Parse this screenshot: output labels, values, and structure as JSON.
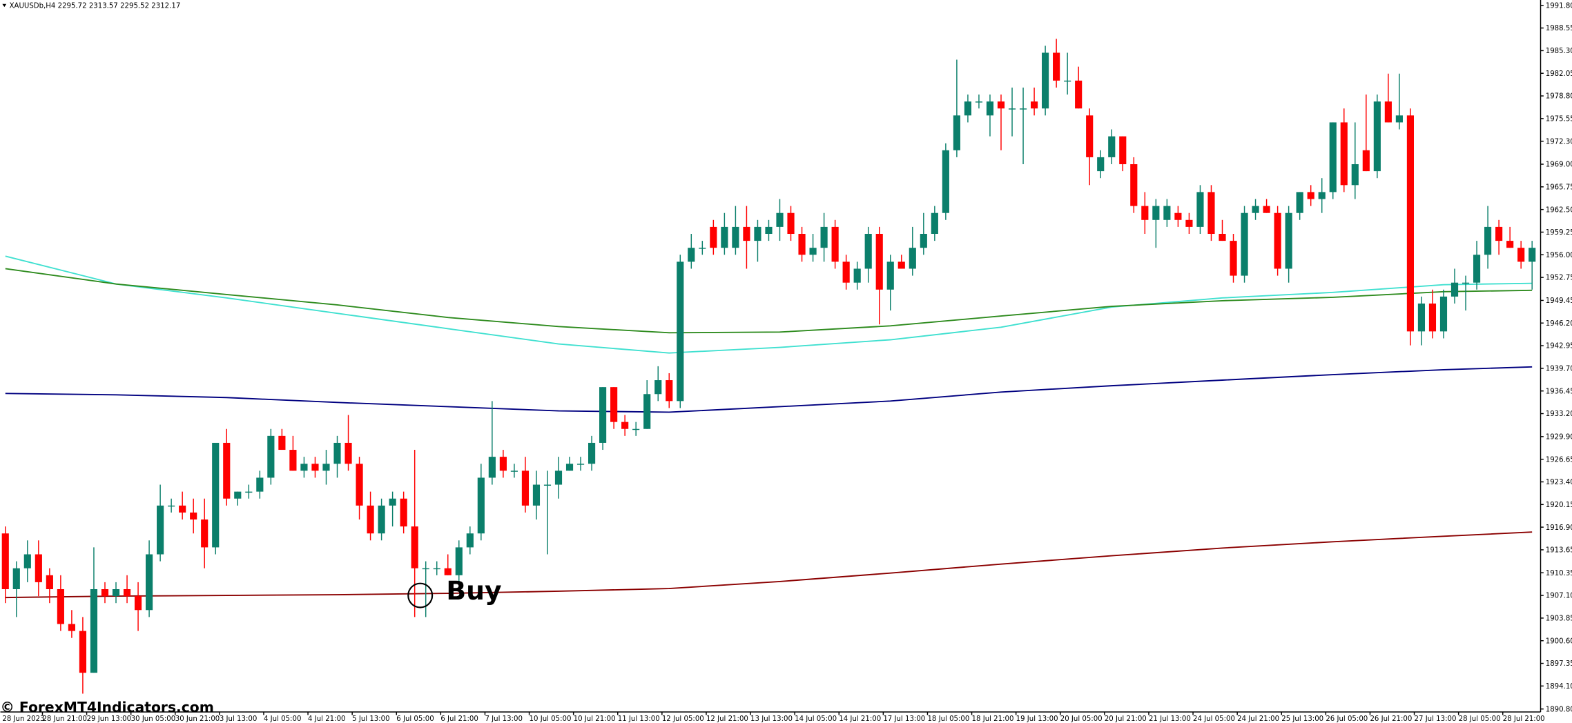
{
  "chart_data": {
    "type": "candlestick",
    "title": "XAUUSDb,H4  2295.72 2313.57 2295.52 2312.17",
    "watermark": "© ForexMT4Indicators.com",
    "annotation": {
      "text": "Buy",
      "x": 37.5,
      "y": 1907.1
    },
    "up_color": "#0b7f6b",
    "down_color": "#ff0000",
    "candles": [
      [
        1916,
        1917,
        1906,
        1908
      ],
      [
        1908,
        1912,
        1904,
        1911
      ],
      [
        1911,
        1915,
        1909,
        1913
      ],
      [
        1913,
        1915,
        1907,
        1909
      ],
      [
        1910,
        1911,
        1906,
        1908
      ],
      [
        1908,
        1910,
        1902,
        1903
      ],
      [
        1903,
        1905,
        1901,
        1902
      ],
      [
        1902,
        1904,
        1893,
        1896
      ],
      [
        1896,
        1914,
        1896,
        1908
      ],
      [
        1908,
        1909,
        1906,
        1907
      ],
      [
        1907,
        1909,
        1906,
        1908
      ],
      [
        1908,
        1910,
        1906,
        1907
      ],
      [
        1907,
        1909,
        1902,
        1905
      ],
      [
        1905,
        1915,
        1904,
        1913
      ],
      [
        1913,
        1923,
        1912,
        1920
      ],
      [
        1920,
        1921,
        1919,
        1920
      ],
      [
        1920,
        1922,
        1918,
        1919
      ],
      [
        1919,
        1921,
        1916,
        1918
      ],
      [
        1918,
        1921,
        1911,
        1914
      ],
      [
        1914,
        1929,
        1913,
        1929
      ],
      [
        1929,
        1931,
        1920,
        1921
      ],
      [
        1921,
        1922,
        1920,
        1922
      ],
      [
        1922,
        1923,
        1921,
        1922
      ],
      [
        1922,
        1925,
        1921,
        1924
      ],
      [
        1924,
        1931,
        1923,
        1930
      ],
      [
        1930,
        1931,
        1928,
        1928
      ],
      [
        1928,
        1930,
        1925,
        1925
      ],
      [
        1925,
        1927,
        1924,
        1926
      ],
      [
        1926,
        1927,
        1924,
        1925
      ],
      [
        1925,
        1928,
        1923,
        1926
      ],
      [
        1926,
        1930,
        1924,
        1929
      ],
      [
        1929,
        1933,
        1925,
        1926
      ],
      [
        1926,
        1927,
        1918,
        1920
      ],
      [
        1920,
        1922,
        1915,
        1916
      ],
      [
        1916,
        1921,
        1915,
        1920
      ],
      [
        1920,
        1922,
        1917,
        1921
      ],
      [
        1921,
        1922,
        1916,
        1917
      ],
      [
        1917,
        1928,
        1904,
        1911
      ],
      [
        1911,
        1912,
        1904,
        1911
      ],
      [
        1911,
        1912,
        1910,
        1911
      ],
      [
        1911,
        1913,
        1910,
        1910
      ],
      [
        1910,
        1915,
        1909,
        1914
      ],
      [
        1914,
        1917,
        1913,
        1916
      ],
      [
        1916,
        1926,
        1915,
        1924
      ],
      [
        1924,
        1935,
        1923,
        1927
      ],
      [
        1927,
        1928,
        1924,
        1925
      ],
      [
        1925,
        1926,
        1924,
        1925
      ],
      [
        1925,
        1927,
        1919,
        1920
      ],
      [
        1920,
        1925,
        1918,
        1923
      ],
      [
        1923,
        1925,
        1913,
        1923
      ],
      [
        1923,
        1927,
        1921,
        1925
      ],
      [
        1925,
        1927,
        1925,
        1926
      ],
      [
        1926,
        1927,
        1925,
        1926
      ],
      [
        1926,
        1930,
        1925,
        1929
      ],
      [
        1929,
        1937,
        1928,
        1937
      ],
      [
        1937,
        1937,
        1931,
        1932
      ],
      [
        1932,
        1933,
        1930,
        1931
      ],
      [
        1931,
        1932,
        1930,
        1931
      ],
      [
        1931,
        1938,
        1931,
        1936
      ],
      [
        1936,
        1940,
        1935,
        1938
      ],
      [
        1938,
        1939,
        1934,
        1935
      ],
      [
        1935,
        1956,
        1934,
        1955
      ],
      [
        1955,
        1959,
        1954,
        1957
      ],
      [
        1957,
        1958,
        1956,
        1957
      ],
      [
        1960,
        1961,
        1956,
        1957
      ],
      [
        1957,
        1962,
        1956,
        1960
      ],
      [
        1957,
        1963,
        1956,
        1960
      ],
      [
        1960,
        1963,
        1954,
        1958
      ],
      [
        1958,
        1961,
        1955,
        1960
      ],
      [
        1959,
        1961,
        1958,
        1960
      ],
      [
        1960,
        1964,
        1958,
        1962
      ],
      [
        1962,
        1963,
        1958,
        1959
      ],
      [
        1959,
        1960,
        1955,
        1956
      ],
      [
        1956,
        1959,
        1955,
        1957
      ],
      [
        1957,
        1962,
        1955,
        1960
      ],
      [
        1960,
        1961,
        1954,
        1955
      ],
      [
        1955,
        1956,
        1951,
        1952
      ],
      [
        1952,
        1955,
        1951,
        1954
      ],
      [
        1954,
        1960,
        1952,
        1959
      ],
      [
        1959,
        1960,
        1946,
        1951
      ],
      [
        1951,
        1956,
        1948,
        1955
      ],
      [
        1955,
        1956,
        1954,
        1954
      ],
      [
        1954,
        1960,
        1953,
        1957
      ],
      [
        1957,
        1962,
        1956,
        1959
      ],
      [
        1959,
        1963,
        1958,
        1962
      ],
      [
        1962,
        1972,
        1961,
        1971
      ],
      [
        1971,
        1984,
        1970,
        1976
      ],
      [
        1976,
        1979,
        1975,
        1978
      ],
      [
        1978,
        1979,
        1977,
        1978
      ],
      [
        1976,
        1979,
        1973,
        1978
      ],
      [
        1978,
        1979,
        1971,
        1977
      ],
      [
        1977,
        1980,
        1973,
        1977
      ],
      [
        1977,
        1980,
        1969,
        1977
      ],
      [
        1978,
        1980,
        1976,
        1977
      ],
      [
        1977,
        1986,
        1976,
        1985
      ],
      [
        1985,
        1987,
        1980,
        1981
      ],
      [
        1981,
        1985,
        1979,
        1981
      ],
      [
        1981,
        1983,
        1977,
        1977
      ],
      [
        1976,
        1977,
        1966,
        1970
      ],
      [
        1968,
        1971,
        1967,
        1970
      ],
      [
        1970,
        1974,
        1969,
        1973
      ],
      [
        1973,
        1973,
        1968,
        1969
      ],
      [
        1969,
        1970,
        1962,
        1963
      ],
      [
        1963,
        1965,
        1959,
        1961
      ],
      [
        1961,
        1964,
        1957,
        1963
      ],
      [
        1961,
        1964,
        1960,
        1963
      ],
      [
        1962,
        1963,
        1960,
        1961
      ],
      [
        1961,
        1962,
        1959,
        1960
      ],
      [
        1960,
        1966,
        1959,
        1965
      ],
      [
        1965,
        1966,
        1958,
        1959
      ],
      [
        1959,
        1961,
        1958,
        1958
      ],
      [
        1958,
        1959,
        1952,
        1953
      ],
      [
        1953,
        1963,
        1952,
        1962
      ],
      [
        1962,
        1964,
        1961,
        1963
      ],
      [
        1963,
        1964,
        1962,
        1962
      ],
      [
        1962,
        1963,
        1953,
        1954
      ],
      [
        1954,
        1963,
        1952,
        1962
      ],
      [
        1962,
        1965,
        1961,
        1965
      ],
      [
        1965,
        1966,
        1963,
        1964
      ],
      [
        1964,
        1967,
        1962,
        1965
      ],
      [
        1965,
        1975,
        1964,
        1975
      ],
      [
        1975,
        1977,
        1965,
        1966
      ],
      [
        1966,
        1975,
        1964,
        1969
      ],
      [
        1971,
        1979,
        1968,
        1968
      ],
      [
        1968,
        1979,
        1967,
        1978
      ],
      [
        1978,
        1982,
        1975,
        1975
      ],
      [
        1975,
        1982,
        1974,
        1976
      ],
      [
        1976,
        1977,
        1943,
        1945
      ],
      [
        1945,
        1950,
        1943,
        1949
      ],
      [
        1949,
        1951,
        1944,
        1945
      ],
      [
        1945,
        1951,
        1944,
        1950
      ],
      [
        1950,
        1954,
        1949,
        1952
      ],
      [
        1952,
        1953,
        1948,
        1952
      ],
      [
        1952,
        1958,
        1951,
        1956
      ],
      [
        1956,
        1963,
        1954,
        1960
      ],
      [
        1960,
        1961,
        1956,
        1958
      ],
      [
        1958,
        1960,
        1957,
        1957
      ],
      [
        1957,
        1958,
        1954,
        1955
      ],
      [
        1955,
        1958,
        1951,
        1957
      ]
    ],
    "lines": [
      {
        "color": "#40e0d0",
        "x": [
          0,
          10,
          20,
          30,
          40,
          50,
          60,
          70,
          80,
          90,
          100,
          110,
          120,
          130,
          138
        ],
        "values": [
          1955.8,
          1951.8,
          1949.8,
          1947.6,
          1945.4,
          1943.2,
          1941.9,
          1942.7,
          1943.8,
          1945.6,
          1948.5,
          1949.8,
          1950.6,
          1951.7,
          1951.9
        ]
      },
      {
        "color": "#2e8b1e",
        "x": [
          0,
          10,
          20,
          30,
          40,
          50,
          60,
          70,
          80,
          90,
          100,
          110,
          120,
          130,
          138
        ],
        "values": [
          1954.0,
          1951.8,
          1950.3,
          1948.8,
          1947.0,
          1945.7,
          1944.8,
          1944.9,
          1945.8,
          1947.2,
          1948.6,
          1949.4,
          1949.9,
          1950.7,
          1950.9
        ]
      },
      {
        "color": "#000080",
        "x": [
          0,
          10,
          20,
          30,
          40,
          50,
          60,
          70,
          80,
          90,
          100,
          110,
          120,
          130,
          138
        ],
        "values": [
          1936.1,
          1935.9,
          1935.5,
          1934.8,
          1934.2,
          1933.6,
          1933.4,
          1934.2,
          1935.0,
          1936.3,
          1937.2,
          1938.0,
          1938.8,
          1939.5,
          1939.9
        ]
      },
      {
        "color": "#8b0000",
        "x": [
          0,
          10,
          20,
          30,
          40,
          50,
          60,
          70,
          80,
          90,
          100,
          110,
          120,
          130,
          138
        ],
        "values": [
          1906.8,
          1907.0,
          1907.1,
          1907.2,
          1907.4,
          1907.7,
          1908.1,
          1909.1,
          1910.3,
          1911.6,
          1912.8,
          1913.9,
          1914.8,
          1915.6,
          1916.2
        ]
      }
    ],
    "x_labels": [
      "28 Jun 2023",
      "28 Jun 21:00",
      "29 Jun 13:00",
      "30 Jun 05:00",
      "30 Jun 21:00",
      "3 Jul 13:00",
      "4 Jul 05:00",
      "4 Jul 21:00",
      "5 Jul 13:00",
      "6 Jul 05:00",
      "6 Jul 21:00",
      "7 Jul 13:00",
      "10 Jul 05:00",
      "10 Jul 21:00",
      "11 Jul 13:00",
      "12 Jul 05:00",
      "12 Jul 21:00",
      "13 Jul 13:00",
      "14 Jul 05:00",
      "14 Jul 21:00",
      "17 Jul 13:00",
      "18 Jul 05:00",
      "18 Jul 21:00",
      "19 Jul 13:00",
      "20 Jul 05:00",
      "20 Jul 21:00",
      "21 Jul 13:00",
      "24 Jul 05:00",
      "24 Jul 21:00",
      "25 Jul 13:00",
      "26 Jul 05:00",
      "26 Jul 21:00",
      "27 Jul 13:00",
      "28 Jul 05:00",
      "28 Jul 21:00"
    ],
    "ylim": [
      1890.37,
      1992.57
    ],
    "yticks": [
      {
        "value": 1991.8,
        "label": "1991.80"
      },
      1988.55,
      {
        "value": 1985.3,
        "label": "1985.30"
      },
      1982.05,
      {
        "value": 1978.8,
        "label": "1978.80"
      },
      1975.55,
      {
        "value": 1972.3,
        "label": "1972.30"
      },
      {
        "value": 1969,
        "label": "1969.00"
      },
      1965.75,
      {
        "value": 1962.5,
        "label": "1962.50"
      },
      1959.25,
      {
        "value": 1956,
        "label": "1956.00"
      },
      1952.75,
      1949.45,
      {
        "value": 1946.2,
        "label": "1946.20"
      },
      1942.95,
      {
        "value": 1939.7,
        "label": "1939.70"
      },
      1936.45,
      {
        "value": 1933.2,
        "label": "1933.20"
      },
      {
        "value": 1929.9,
        "label": "1929.90"
      },
      1926.65,
      {
        "value": 1923.4,
        "label": "1923.40"
      },
      1920.15,
      {
        "value": 1916.9,
        "label": "1916.90"
      },
      1913.65,
      1910.35,
      {
        "value": 1907.1,
        "label": "1907.10"
      },
      1903.85,
      {
        "value": 1900.6,
        "label": "1900.60"
      },
      1897.35,
      {
        "value": 1894.1,
        "label": "1894.10"
      },
      {
        "value": 1890.8,
        "label": "1890.80"
      }
    ]
  }
}
